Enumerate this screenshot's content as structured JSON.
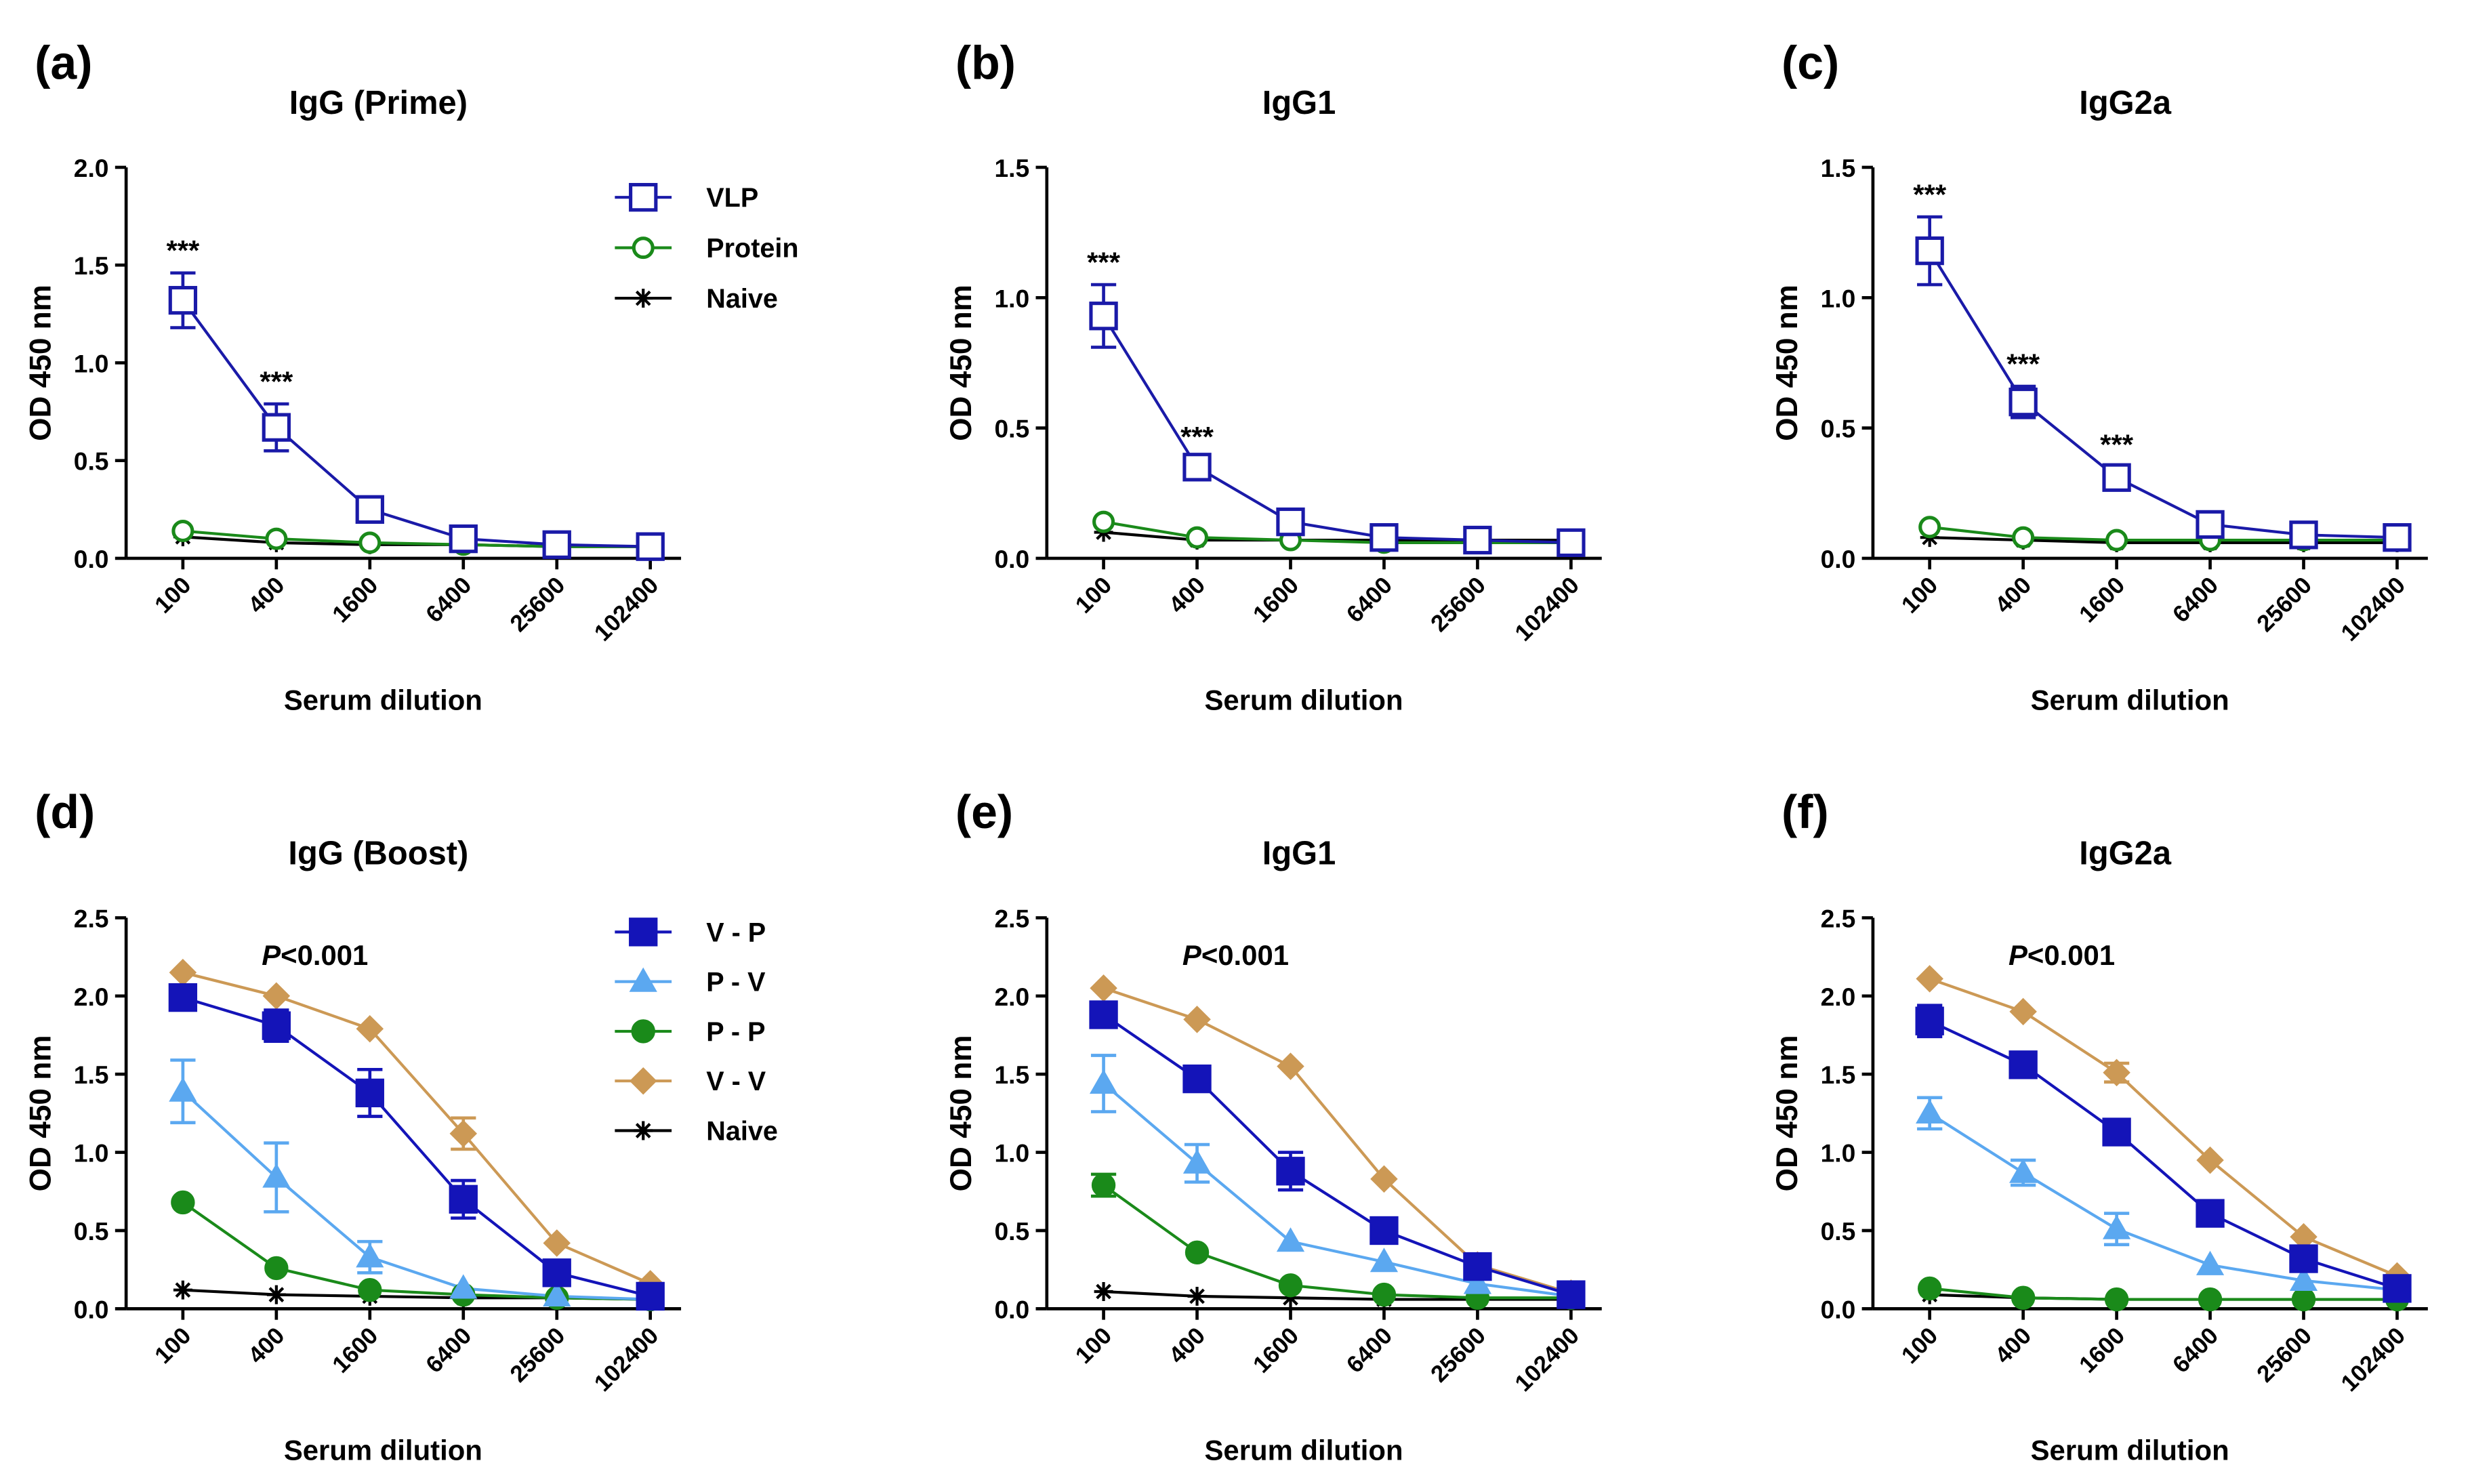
{
  "chart_data": [
    {
      "type": "line",
      "panel": "(a)",
      "title": "IgG (Prime)",
      "x_label": "Serum dilution",
      "y_label": "OD 450 nm",
      "categories": [
        "100",
        "400",
        "1600",
        "6400",
        "25600",
        "102400"
      ],
      "ylim": [
        0,
        2
      ],
      "yticks": [
        {
          "value": 0,
          "label": "0.0"
        },
        {
          "value": 0.5,
          "label": "0.5"
        },
        {
          "value": 1,
          "label": "1.0"
        },
        {
          "value": 1.5,
          "label": "1.5"
        },
        {
          "value": 2,
          "label": "2.0"
        }
      ],
      "legend": "upper right",
      "series": [
        {
          "name": "VLP",
          "color": "#1a1aa8",
          "marker": "square-open",
          "values": [
            1.32,
            0.67,
            0.25,
            0.1,
            0.07,
            0.06
          ],
          "errors": [
            0.14,
            0.12,
            0.03,
            null,
            null,
            null
          ]
        },
        {
          "name": "Protein",
          "color": "#1a8a1a",
          "marker": "circle-open",
          "values": [
            0.14,
            0.1,
            0.08,
            0.07,
            0.06,
            0.06
          ]
        },
        {
          "name": "Naive",
          "color": "#000000",
          "marker": "star",
          "values": [
            0.11,
            0.08,
            0.07,
            0.07,
            0.06,
            0.06
          ]
        }
      ],
      "annotations": [
        {
          "text": "***",
          "x": "100"
        },
        {
          "text": "***",
          "x": "400"
        }
      ]
    },
    {
      "type": "line",
      "panel": "(b)",
      "title": "IgG1",
      "x_label": "Serum dilution",
      "y_label": "OD 450 nm",
      "categories": [
        "100",
        "400",
        "1600",
        "6400",
        "25600",
        "102400"
      ],
      "ylim": [
        0,
        1.5
      ],
      "yticks": [
        {
          "value": 0,
          "label": "0.0"
        },
        {
          "value": 0.5,
          "label": "0.5"
        },
        {
          "value": 1,
          "label": "1.0"
        },
        {
          "value": 1.5,
          "label": "1.5"
        }
      ],
      "series": [
        {
          "name": "VLP",
          "color": "#1a1aa8",
          "marker": "square-open",
          "values": [
            0.93,
            0.35,
            0.14,
            0.08,
            0.07,
            0.06
          ],
          "errors": [
            0.12,
            0.03,
            null,
            null,
            null,
            null
          ]
        },
        {
          "name": "Protein",
          "color": "#1a8a1a",
          "marker": "circle-open",
          "values": [
            0.14,
            0.08,
            0.07,
            0.06,
            0.06,
            0.06
          ]
        },
        {
          "name": "Naive",
          "color": "#000000",
          "marker": "star",
          "values": [
            0.1,
            0.07,
            0.07,
            0.07,
            0.07,
            0.07
          ]
        }
      ],
      "annotations": [
        {
          "text": "***",
          "x": "100"
        },
        {
          "text": "***",
          "x": "400"
        }
      ]
    },
    {
      "type": "line",
      "panel": "(c)",
      "title": "IgG2a",
      "x_label": "Serum dilution",
      "y_label": "OD 450 nm",
      "categories": [
        "100",
        "400",
        "1600",
        "6400",
        "25600",
        "102400"
      ],
      "ylim": [
        0,
        1.5
      ],
      "yticks": [
        {
          "value": 0,
          "label": "0.0"
        },
        {
          "value": 0.5,
          "label": "0.5"
        },
        {
          "value": 1,
          "label": "1.0"
        },
        {
          "value": 1.5,
          "label": "1.5"
        }
      ],
      "series": [
        {
          "name": "VLP",
          "color": "#1a1aa8",
          "marker": "square-open",
          "values": [
            1.18,
            0.6,
            0.31,
            0.13,
            0.09,
            0.08
          ],
          "errors": [
            0.13,
            0.06,
            0.04,
            null,
            null,
            null
          ]
        },
        {
          "name": "Protein",
          "color": "#1a8a1a",
          "marker": "circle-open",
          "values": [
            0.12,
            0.08,
            0.07,
            0.07,
            0.07,
            0.07
          ]
        },
        {
          "name": "Naive",
          "color": "#000000",
          "marker": "star",
          "values": [
            0.08,
            0.07,
            0.06,
            0.06,
            0.06,
            0.06
          ]
        }
      ],
      "annotations": [
        {
          "text": "***",
          "x": "100"
        },
        {
          "text": "***",
          "x": "400"
        },
        {
          "text": "***",
          "x": "1600"
        }
      ]
    },
    {
      "type": "line",
      "panel": "(d)",
      "title": "IgG (Boost)",
      "x_label": "Serum dilution",
      "y_label": "OD 450 nm",
      "categories": [
        "100",
        "400",
        "1600",
        "6400",
        "25600",
        "102400"
      ],
      "ylim": [
        0,
        2.5
      ],
      "yticks": [
        {
          "value": 0,
          "label": "0.0"
        },
        {
          "value": 0.5,
          "label": "0.5"
        },
        {
          "value": 1,
          "label": "1.0"
        },
        {
          "value": 1.5,
          "label": "1.5"
        },
        {
          "value": 2,
          "label": "2.0"
        },
        {
          "value": 2.5,
          "label": "2.5"
        }
      ],
      "legend": "upper right",
      "note": "P<0.001",
      "series": [
        {
          "name": "V - P",
          "color": "#1414b8",
          "marker": "square",
          "values": [
            1.99,
            1.81,
            1.38,
            0.7,
            0.23,
            0.08
          ],
          "errors": [
            0.05,
            0.1,
            0.15,
            0.12,
            null,
            null
          ]
        },
        {
          "name": "P - V",
          "color": "#5ba8f0",
          "marker": "triangle",
          "values": [
            1.39,
            0.84,
            0.33,
            0.13,
            0.08,
            0.06
          ],
          "errors": [
            0.2,
            0.22,
            0.1,
            null,
            null,
            null
          ]
        },
        {
          "name": "P - P",
          "color": "#1a8a1a",
          "marker": "circle",
          "values": [
            0.68,
            0.26,
            0.12,
            0.09,
            0.07,
            0.06
          ]
        },
        {
          "name": "V - V",
          "color": "#cc9955",
          "marker": "diamond",
          "values": [
            2.15,
            2.0,
            1.79,
            1.12,
            0.42,
            0.16
          ],
          "errors": [
            null,
            null,
            null,
            0.1,
            null,
            null
          ]
        },
        {
          "name": "Naive",
          "color": "#000000",
          "marker": "star",
          "values": [
            0.12,
            0.09,
            0.08,
            0.07,
            0.07,
            0.06
          ]
        }
      ]
    },
    {
      "type": "line",
      "panel": "(e)",
      "title": "IgG1",
      "x_label": "Serum dilution",
      "y_label": "OD 450 nm",
      "categories": [
        "100",
        "400",
        "1600",
        "6400",
        "25600",
        "102400"
      ],
      "ylim": [
        0,
        2.5
      ],
      "yticks": [
        {
          "value": 0,
          "label": "0.0"
        },
        {
          "value": 0.5,
          "label": "0.5"
        },
        {
          "value": 1,
          "label": "1.0"
        },
        {
          "value": 1.5,
          "label": "1.5"
        },
        {
          "value": 2,
          "label": "2.0"
        },
        {
          "value": 2.5,
          "label": "2.5"
        }
      ],
      "note": "P<0.001",
      "series": [
        {
          "name": "V - P",
          "color": "#1414b8",
          "marker": "square",
          "values": [
            1.88,
            1.47,
            0.88,
            0.5,
            0.27,
            0.09
          ],
          "errors": [
            0.08,
            0.08,
            0.12,
            null,
            null,
            null
          ]
        },
        {
          "name": "P - V",
          "color": "#5ba8f0",
          "marker": "triangle",
          "values": [
            1.44,
            0.93,
            0.43,
            0.3,
            0.16,
            0.08
          ],
          "errors": [
            0.18,
            0.12,
            null,
            null,
            null,
            null
          ]
        },
        {
          "name": "P - P",
          "color": "#1a8a1a",
          "marker": "circle",
          "values": [
            0.79,
            0.36,
            0.15,
            0.09,
            0.07,
            0.07
          ],
          "errors": [
            0.07,
            null,
            null,
            null,
            null,
            null
          ]
        },
        {
          "name": "V - V",
          "color": "#cc9955",
          "marker": "diamond",
          "values": [
            2.05,
            1.85,
            1.55,
            0.83,
            0.28,
            0.1
          ]
        },
        {
          "name": "Naive",
          "color": "#000000",
          "marker": "star",
          "values": [
            0.11,
            0.08,
            0.07,
            0.06,
            0.06,
            0.06
          ]
        }
      ]
    },
    {
      "type": "line",
      "panel": "(f)",
      "title": "IgG2a",
      "x_label": "Serum dilution",
      "y_label": "OD 450 nm",
      "categories": [
        "100",
        "400",
        "1600",
        "6400",
        "25600",
        "102400"
      ],
      "ylim": [
        0,
        2.5
      ],
      "yticks": [
        {
          "value": 0,
          "label": "0.0"
        },
        {
          "value": 0.5,
          "label": "0.5"
        },
        {
          "value": 1,
          "label": "1.0"
        },
        {
          "value": 1.5,
          "label": "1.5"
        },
        {
          "value": 2,
          "label": "2.0"
        },
        {
          "value": 2.5,
          "label": "2.5"
        }
      ],
      "note": "P<0.001",
      "series": [
        {
          "name": "V - P",
          "color": "#1414b8",
          "marker": "square",
          "values": [
            1.84,
            1.56,
            1.13,
            0.61,
            0.32,
            0.13
          ],
          "errors": [
            0.1,
            0.08,
            null,
            null,
            null,
            null
          ]
        },
        {
          "name": "P - V",
          "color": "#5ba8f0",
          "marker": "triangle",
          "values": [
            1.25,
            0.87,
            0.51,
            0.28,
            0.18,
            0.12
          ],
          "errors": [
            0.1,
            0.08,
            0.1,
            null,
            null,
            null
          ]
        },
        {
          "name": "P - P",
          "color": "#1a8a1a",
          "marker": "circle",
          "values": [
            0.13,
            0.07,
            0.06,
            0.06,
            0.06,
            0.06
          ]
        },
        {
          "name": "V - V",
          "color": "#cc9955",
          "marker": "diamond",
          "values": [
            2.11,
            1.9,
            1.51,
            0.95,
            0.46,
            0.21
          ],
          "errors": [
            null,
            null,
            0.06,
            null,
            null,
            null
          ]
        },
        {
          "name": "Naive",
          "color": "#000000",
          "marker": "star",
          "values": [
            0.09,
            0.07,
            0.06,
            0.06,
            0.06,
            0.06
          ]
        }
      ]
    }
  ]
}
